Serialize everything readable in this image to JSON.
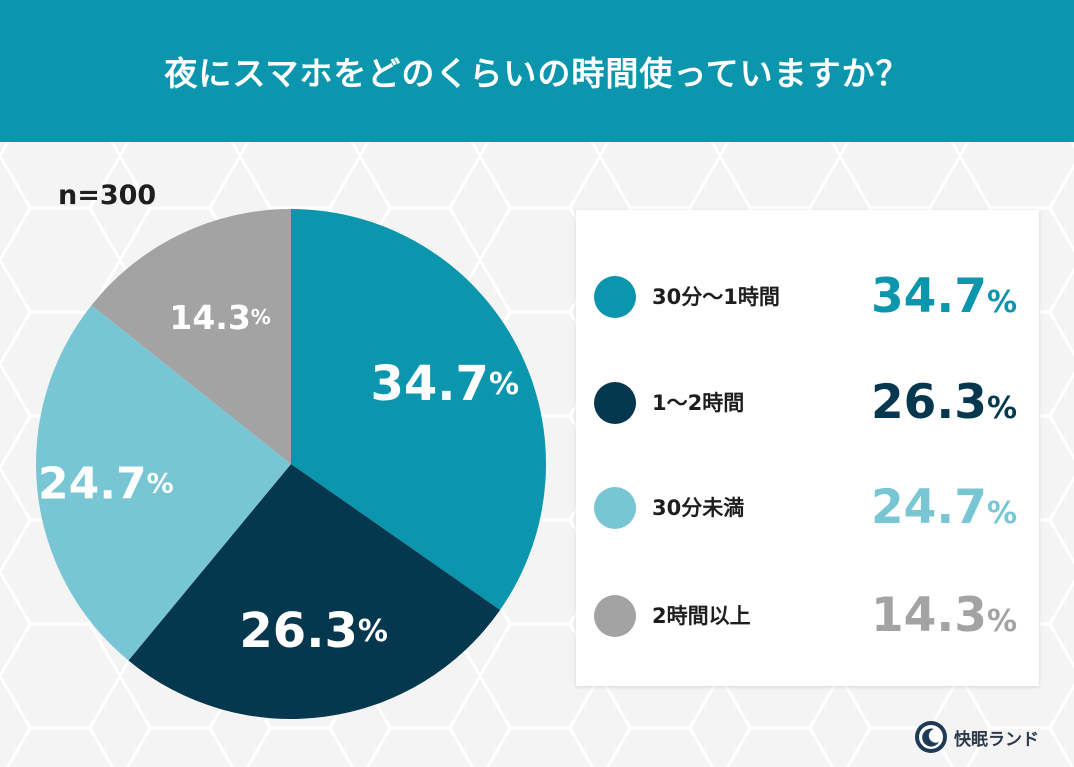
{
  "header": {
    "title": "夜にスマホをどのくらいの時間使っていますか？"
  },
  "sample_size": "n=300",
  "brand": {
    "name": "快眠ランド"
  },
  "colors": {
    "header_bg": "#0b96ae",
    "series": [
      "#0b96ae",
      "#05374f",
      "#78c6d4",
      "#a3a3a3"
    ]
  },
  "chart_data": {
    "type": "pie",
    "start_angle_deg": 0,
    "direction": "clockwise",
    "slices": [
      {
        "label": "30分〜1時間",
        "value": 34.7,
        "display": "34.7",
        "color": "#0b96ae"
      },
      {
        "label": "1〜2時間",
        "value": 26.3,
        "display": "26.3",
        "color": "#05374f"
      },
      {
        "label": "30分未満",
        "value": 24.7,
        "display": "24.7",
        "color": "#78c6d4"
      },
      {
        "label": "2時間以上",
        "value": 14.3,
        "display": "14.3",
        "color": "#a3a3a3"
      }
    ],
    "unit": "%"
  }
}
